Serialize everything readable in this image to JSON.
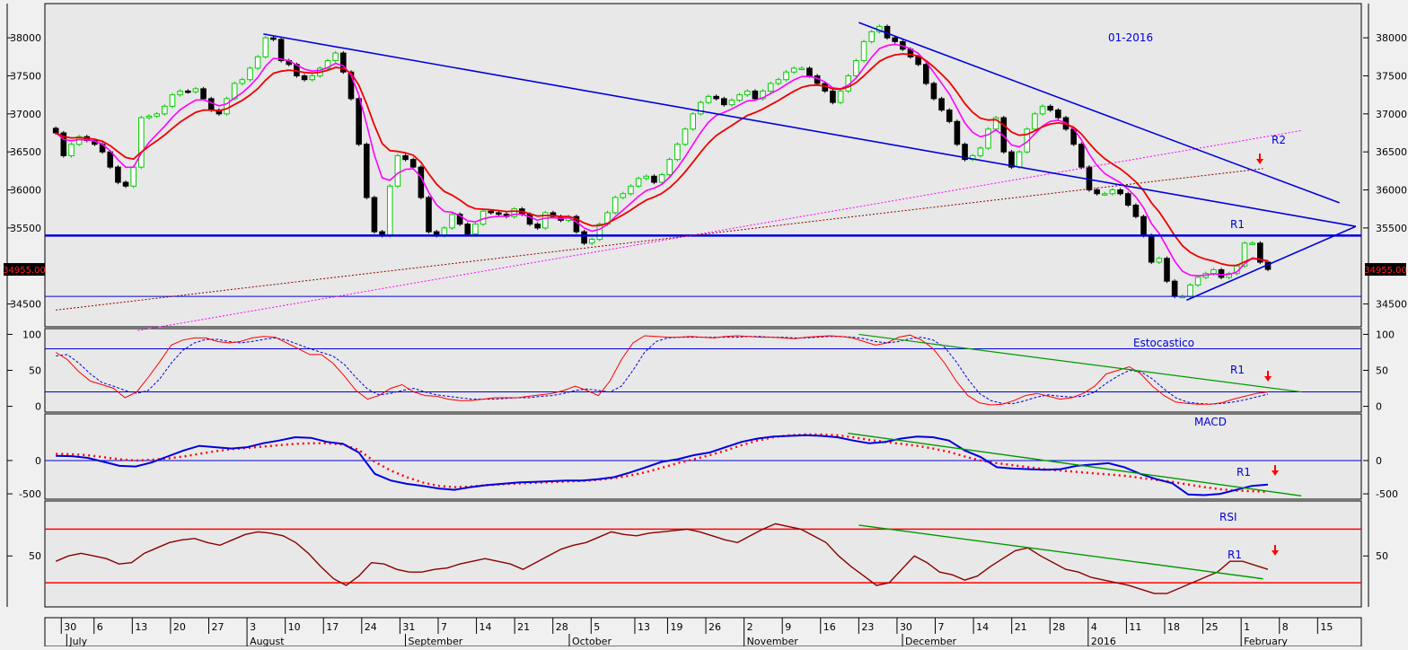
{
  "colors": {
    "background": "#f0f0f0",
    "plot_bg": "#e8e8e8",
    "trendline": "#0000dd",
    "up_candle": "#00cc00",
    "down_candle": "#000000",
    "ma_fast": "#ff00ff",
    "ma_slow": "#ee0000",
    "price_tag_bg": "#000000",
    "price_tag_text": "#ff2020",
    "rsi_line": "#8b0000",
    "rsi_level": "#ff0000",
    "green_trend": "#009900",
    "arrow": "#ff0000",
    "stoch_k": "#ff0000",
    "stoch_d": "#0000dd",
    "macd_line": "#0000dd",
    "macd_signal": "#ff0000"
  },
  "price_tag": "34955.00",
  "chart_data": [
    {
      "panel": "price",
      "type": "candlestick",
      "annotations": [
        "01-2016",
        "R2",
        "R1"
      ],
      "ylim": [
        34200,
        38450
      ],
      "y_ticks": [
        "38000",
        "37500",
        "37000",
        "36500",
        "36000",
        "35500",
        "34500"
      ],
      "y_tick_values": [
        38000,
        37500,
        37000,
        36500,
        36000,
        35500,
        34500
      ],
      "x_start": "2015-06-29",
      "last_close": 34955,
      "closes": [
        36750,
        36450,
        36600,
        36700,
        36650,
        36600,
        36500,
        36300,
        36100,
        36050,
        36300,
        36950,
        36970,
        37000,
        37100,
        37250,
        37300,
        37290,
        37330,
        37200,
        37050,
        37000,
        37200,
        37400,
        37450,
        37600,
        37750,
        38000,
        37980,
        37700,
        37650,
        37500,
        37450,
        37500,
        37600,
        37700,
        37800,
        37550,
        37200,
        36600,
        35900,
        35450,
        35400,
        36050,
        36450,
        36400,
        36300,
        35900,
        35450,
        35400,
        35500,
        35680,
        35550,
        35420,
        35550,
        35720,
        35700,
        35680,
        35650,
        35750,
        35680,
        35550,
        35500,
        35700,
        35650,
        35600,
        35650,
        35450,
        35300,
        35350,
        35550,
        35700,
        35900,
        35950,
        36050,
        36150,
        36180,
        36100,
        36200,
        36400,
        36600,
        36800,
        37000,
        37150,
        37230,
        37200,
        37120,
        37180,
        37250,
        37300,
        37200,
        37300,
        37400,
        37450,
        37550,
        37600,
        37600,
        37500,
        37400,
        37300,
        37150,
        37300,
        37500,
        37700,
        37950,
        38080,
        38150,
        38000,
        37950,
        37850,
        37750,
        37650,
        37400,
        37200,
        37050,
        36900,
        36600,
        36400,
        36450,
        36550,
        36800,
        36950,
        36500,
        36300,
        36500,
        36800,
        37000,
        37100,
        37050,
        36950,
        36800,
        36600,
        36300,
        36000,
        35950,
        35950,
        36000,
        35950,
        35800,
        35650,
        35400,
        35050,
        35100,
        34800,
        34600,
        34600,
        34750,
        34850,
        34900,
        34950,
        34850,
        34900,
        35000,
        35300,
        35300,
        35050,
        34955
      ],
      "trendlines": [
        {
          "from": [
            "2015-08-06",
            38050
          ],
          "to": [
            "2016-02-22",
            35520
          ]
        },
        {
          "from": [
            "2015-11-23",
            38200
          ],
          "to": [
            "2016-02-19",
            35830
          ]
        },
        {
          "from": [
            "2016-01-22",
            34550
          ],
          "to": [
            "2016-02-22",
            35520
          ]
        }
      ],
      "dotted_lines": [
        {
          "color": "#ff00ff",
          "from": [
            "2015-07-14",
            34150
          ],
          "to": [
            "2016-02-12",
            36780
          ]
        },
        {
          "color": "#8b0000",
          "from": [
            "2015-06-29",
            34420
          ],
          "to": [
            "2016-02-05",
            36280
          ]
        }
      ],
      "horizontal_levels": [
        {
          "label": "R1",
          "value": 35400,
          "width": 2.5
        },
        {
          "value": 34600,
          "width": 1
        }
      ]
    },
    {
      "panel": "stochastic",
      "type": "line",
      "label": "Estocastico",
      "ylim": [
        -8,
        108
      ],
      "y_ticks": [
        "100",
        "50",
        "0"
      ],
      "y_tick_values": [
        100,
        50,
        0
      ],
      "levels": [
        80,
        20
      ],
      "annotations": [
        "R1"
      ],
      "k": [
        75,
        65,
        48,
        35,
        30,
        25,
        12,
        20,
        40,
        62,
        85,
        92,
        95,
        95,
        90,
        88,
        90,
        95,
        97,
        96,
        88,
        80,
        72,
        72,
        60,
        42,
        22,
        10,
        15,
        25,
        30,
        20,
        15,
        14,
        10,
        8,
        8,
        10,
        12,
        12,
        12,
        14,
        16,
        18,
        22,
        28,
        22,
        15,
        35,
        65,
        88,
        98,
        97,
        96,
        96,
        97,
        96,
        95,
        97,
        98,
        97,
        96,
        96,
        95,
        94,
        96,
        97,
        98,
        97,
        95,
        90,
        85,
        88,
        96,
        99,
        92,
        80,
        60,
        35,
        15,
        5,
        2,
        3,
        8,
        15,
        18,
        14,
        10,
        12,
        18,
        28,
        45,
        50,
        55,
        45,
        28,
        15,
        6,
        4,
        3,
        3,
        5,
        10,
        14,
        18,
        20
      ],
      "d": [
        70,
        72,
        60,
        45,
        33,
        28,
        22,
        18,
        22,
        38,
        60,
        78,
        88,
        93,
        93,
        90,
        88,
        90,
        93,
        95,
        92,
        86,
        80,
        75,
        70,
        58,
        40,
        24,
        16,
        18,
        22,
        25,
        20,
        16,
        14,
        12,
        10,
        10,
        10,
        11,
        12,
        12,
        14,
        15,
        18,
        22,
        24,
        22,
        20,
        28,
        50,
        75,
        90,
        95,
        96,
        96,
        96,
        96,
        96,
        96,
        97,
        97,
        96,
        96,
        95,
        95,
        96,
        97,
        97,
        96,
        94,
        90,
        88,
        90,
        94,
        96,
        92,
        82,
        62,
        38,
        18,
        8,
        4,
        4,
        8,
        13,
        16,
        14,
        13,
        14,
        20,
        32,
        42,
        50,
        48,
        38,
        24,
        12,
        6,
        4,
        3,
        4,
        6,
        9,
        13,
        17
      ]
    },
    {
      "panel": "macd",
      "type": "line",
      "label": "MACD",
      "ylim": [
        -580,
        700
      ],
      "y_ticks": [
        "0",
        "-500"
      ],
      "y_tick_values": [
        0,
        -500
      ],
      "levels": [
        0
      ],
      "annotations": [
        "R1"
      ],
      "macd": [
        70,
        65,
        40,
        -20,
        -80,
        -90,
        -30,
        60,
        150,
        220,
        200,
        180,
        200,
        260,
        300,
        350,
        340,
        280,
        250,
        120,
        -200,
        -300,
        -350,
        -380,
        -420,
        -440,
        -400,
        -370,
        -350,
        -330,
        -320,
        -310,
        -300,
        -300,
        -280,
        -250,
        -180,
        -100,
        -20,
        20,
        80,
        120,
        200,
        280,
        330,
        360,
        370,
        380,
        370,
        350,
        300,
        260,
        280,
        330,
        360,
        350,
        300,
        150,
        50,
        -100,
        -120,
        -130,
        -140,
        -130,
        -80,
        -60,
        -40,
        -100,
        -200,
        -280,
        -340,
        -510,
        -520,
        -500,
        -440,
        -380,
        -360
      ],
      "signal": [
        100,
        95,
        80,
        50,
        20,
        0,
        10,
        30,
        60,
        100,
        140,
        170,
        190,
        210,
        230,
        250,
        260,
        260,
        240,
        160,
        -20,
        -150,
        -250,
        -330,
        -380,
        -400,
        -390,
        -370,
        -355,
        -345,
        -335,
        -325,
        -315,
        -305,
        -290,
        -265,
        -225,
        -175,
        -110,
        -40,
        20,
        80,
        150,
        230,
        300,
        350,
        380,
        390,
        390,
        380,
        350,
        310,
        280,
        250,
        220,
        180,
        130,
        60,
        0,
        -40,
        -70,
        -100,
        -130,
        -150,
        -170,
        -190,
        -210,
        -230,
        -260,
        -290,
        -320,
        -360,
        -400,
        -430,
        -450,
        -460,
        -470
      ]
    },
    {
      "panel": "rsi",
      "type": "line",
      "label": "RSI",
      "ylim": [
        12,
        91
      ],
      "y_ticks": [
        "50"
      ],
      "y_tick_values": [
        50
      ],
      "levels": [
        70,
        30
      ],
      "annotations": [
        "R1"
      ],
      "rsi": [
        46,
        50,
        52,
        50,
        48,
        44,
        45,
        52,
        56,
        60,
        62,
        63,
        60,
        58,
        62,
        66,
        68,
        67,
        65,
        60,
        52,
        42,
        33,
        28,
        35,
        45,
        44,
        40,
        38,
        38,
        40,
        41,
        44,
        46,
        48,
        46,
        44,
        40,
        45,
        50,
        55,
        58,
        60,
        64,
        68,
        66,
        65,
        67,
        68,
        69,
        70,
        68,
        65,
        62,
        60,
        65,
        70,
        74,
        72,
        70,
        65,
        60,
        50,
        42,
        35,
        28,
        30,
        40,
        50,
        45,
        38,
        36,
        32,
        35,
        42,
        48,
        54,
        56,
        50,
        45,
        40,
        38,
        34,
        32,
        30,
        28,
        25,
        22,
        22,
        26,
        30,
        34,
        38,
        46,
        46,
        43,
        40
      ]
    }
  ],
  "x_axis": {
    "day_ticks": [
      {
        "date": "2015-06-30",
        "label": "30"
      },
      {
        "date": "2015-07-06",
        "label": "6"
      },
      {
        "date": "2015-07-13",
        "label": "13"
      },
      {
        "date": "2015-07-20",
        "label": "20"
      },
      {
        "date": "2015-07-27",
        "label": "27"
      },
      {
        "date": "2015-08-03",
        "label": "3"
      },
      {
        "date": "2015-08-10",
        "label": "10"
      },
      {
        "date": "2015-08-17",
        "label": "17"
      },
      {
        "date": "2015-08-24",
        "label": "24"
      },
      {
        "date": "2015-08-31",
        "label": "31"
      },
      {
        "date": "2015-09-07",
        "label": "7"
      },
      {
        "date": "2015-09-14",
        "label": "14"
      },
      {
        "date": "2015-09-21",
        "label": "21"
      },
      {
        "date": "2015-09-28",
        "label": "28"
      },
      {
        "date": "2015-10-05",
        "label": "5"
      },
      {
        "date": "2015-10-13",
        "label": "13"
      },
      {
        "date": "2015-10-19",
        "label": "19"
      },
      {
        "date": "2015-10-26",
        "label": "26"
      },
      {
        "date": "2015-11-02",
        "label": "2"
      },
      {
        "date": "2015-11-09",
        "label": "9"
      },
      {
        "date": "2015-11-16",
        "label": "16"
      },
      {
        "date": "2015-11-23",
        "label": "23"
      },
      {
        "date": "2015-11-30",
        "label": "30"
      },
      {
        "date": "2015-12-07",
        "label": "7"
      },
      {
        "date": "2015-12-14",
        "label": "14"
      },
      {
        "date": "2015-12-21",
        "label": "21"
      },
      {
        "date": "2015-12-28",
        "label": "28"
      },
      {
        "date": "2016-01-04",
        "label": "4"
      },
      {
        "date": "2016-01-11",
        "label": "11"
      },
      {
        "date": "2016-01-18",
        "label": "18"
      },
      {
        "date": "2016-01-25",
        "label": "25"
      },
      {
        "date": "2016-02-01",
        "label": "1"
      },
      {
        "date": "2016-02-08",
        "label": "8"
      },
      {
        "date": "2016-02-15",
        "label": "15"
      }
    ],
    "month_ticks": [
      {
        "date": "2015-07-01",
        "label": "July"
      },
      {
        "date": "2015-08-03",
        "label": "August"
      },
      {
        "date": "2015-09-01",
        "label": "September"
      },
      {
        "date": "2015-10-01",
        "label": "October"
      },
      {
        "date": "2015-11-02",
        "label": "November"
      },
      {
        "date": "2015-12-01",
        "label": "December"
      },
      {
        "date": "2016-01-04",
        "label": "2016"
      },
      {
        "date": "2016-02-01",
        "label": "February"
      }
    ]
  }
}
